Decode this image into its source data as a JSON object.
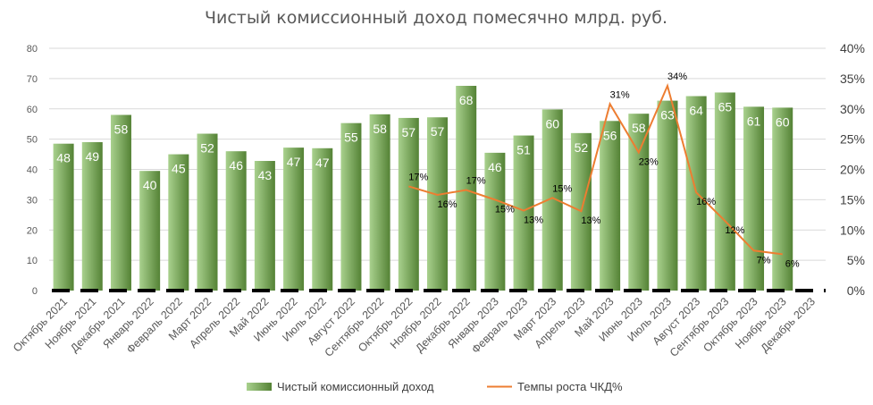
{
  "chart_data": {
    "type": "bar",
    "title": "Чистый комиссионный доход помесячно млрд. руб.",
    "categories": [
      "Октябрь 2021",
      "Ноябрь 2021",
      "Декабрь 2021",
      "Январь 2022",
      "Февраль 2022",
      "Март 2022",
      "Апрель 2022",
      "Май 2022",
      "Июнь 2022",
      "Июль 2022",
      "Август 2022",
      "Сентябрь 2022",
      "Октябрь 2022",
      "Ноябрь 2022",
      "Декабрь 2022",
      "Январь 2023",
      "Февраль 2023",
      "Март 2023",
      "Апрель 2023",
      "Май 2023",
      "Июнь 2023",
      "Июль 2023",
      "Август 2023",
      "Сентябрь 2023",
      "Октябрь 2023",
      "Ноябрь 2023",
      "Декабрь 2023"
    ],
    "series": [
      {
        "name": "Чистый комиссионный доход",
        "type": "bar",
        "axis": "left",
        "values": [
          48.5,
          49,
          58,
          39.5,
          45,
          51.8,
          46,
          42.8,
          47.2,
          47,
          55.3,
          58.2,
          57,
          57.2,
          67.6,
          45.5,
          51.2,
          59.8,
          52,
          56,
          58.4,
          62.7,
          64.2,
          65.4,
          60.7,
          60.4,
          null
        ],
        "labels": [
          "48",
          "49",
          "58",
          "40",
          "45",
          "52",
          "46",
          "43",
          "47",
          "47",
          "55",
          "58",
          "57",
          "57",
          "68",
          "46",
          "51",
          "60",
          "52",
          "56",
          "58",
          "63",
          "64",
          "65",
          "61",
          "60",
          ""
        ]
      },
      {
        "name": "Темпы роста ЧКД%",
        "type": "line",
        "axis": "right",
        "values": [
          null,
          null,
          null,
          null,
          null,
          null,
          null,
          null,
          null,
          null,
          null,
          null,
          17.2,
          15.8,
          16.6,
          15.0,
          13.2,
          15.3,
          13.1,
          30.8,
          22.8,
          33.8,
          16.2,
          11.5,
          6.6,
          6.0,
          null
        ],
        "labels": [
          "",
          "",
          "",
          "",
          "",
          "",
          "",
          "",
          "",
          "",
          "",
          "",
          "17%",
          "16%",
          "17%",
          "15%",
          "13%",
          "15%",
          "13%",
          "31%",
          "23%",
          "34%",
          "16%",
          "12%",
          "7%",
          "6%",
          ""
        ]
      }
    ],
    "y_left": {
      "min": 0,
      "max": 80,
      "step": 10,
      "ticks": [
        "0",
        "10",
        "20",
        "30",
        "40",
        "50",
        "60",
        "70",
        "80"
      ]
    },
    "y_right": {
      "min": 0,
      "max": 40,
      "step": 5,
      "ticks": [
        "0%",
        "5%",
        "10%",
        "15%",
        "20%",
        "25%",
        "30%",
        "35%",
        "40%"
      ]
    },
    "grid": true,
    "legend": "bottom"
  },
  "colors": {
    "bar_light": "#a9d18e",
    "bar_dark": "#548235",
    "line": "#ed7d31",
    "axis_dash": "#000000"
  }
}
